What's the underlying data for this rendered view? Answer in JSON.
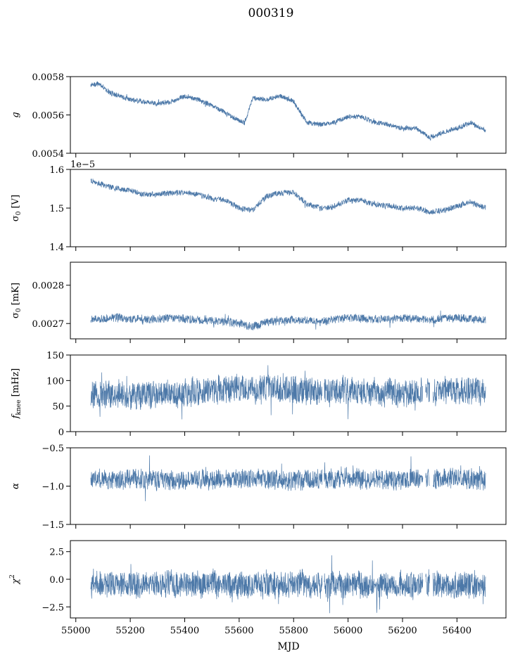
{
  "figure": {
    "suptitle": "000319",
    "xlabel": "MJD",
    "series_color": "#4c78a8"
  },
  "chart_data": [
    {
      "type": "line",
      "ylabel": "g",
      "xlim": [
        54980,
        56580
      ],
      "ylim": [
        0.0054,
        0.0058
      ],
      "yticks": [
        "0.0054",
        "0.0056",
        "0.0058"
      ],
      "ytick_values": [
        0.0054,
        0.0056,
        0.0058
      ],
      "xticks": [
        55000,
        55200,
        55400,
        55600,
        55800,
        56000,
        56200,
        56400
      ],
      "offset_text": "",
      "data_range": [
        55055,
        56505
      ],
      "trend": [
        [
          55055,
          0.005755
        ],
        [
          55080,
          0.005765
        ],
        [
          55120,
          0.00572
        ],
        [
          55160,
          0.0057
        ],
        [
          55200,
          0.00568
        ],
        [
          55250,
          0.00567
        ],
        [
          55300,
          0.00566
        ],
        [
          55350,
          0.00567
        ],
        [
          55400,
          0.0057
        ],
        [
          55450,
          0.00568
        ],
        [
          55500,
          0.00565
        ],
        [
          55550,
          0.00561
        ],
        [
          55600,
          0.00557
        ],
        [
          55620,
          0.00556
        ],
        [
          55650,
          0.00569
        ],
        [
          55700,
          0.00568
        ],
        [
          55750,
          0.0057
        ],
        [
          55800,
          0.00567
        ],
        [
          55850,
          0.00556
        ],
        [
          55900,
          0.00555
        ],
        [
          55950,
          0.00556
        ],
        [
          56000,
          0.00559
        ],
        [
          56050,
          0.00559
        ],
        [
          56100,
          0.00556
        ],
        [
          56150,
          0.00555
        ],
        [
          56200,
          0.00553
        ],
        [
          56250,
          0.00553
        ],
        [
          56300,
          0.00548
        ],
        [
          56350,
          0.00551
        ],
        [
          56400,
          0.00553
        ],
        [
          56450,
          0.00556
        ],
        [
          56505,
          0.00552
        ]
      ],
      "amplitude": 1.2e-05,
      "gaps": []
    },
    {
      "type": "line",
      "ylabel": "σ0 [V]",
      "xlim": [
        54980,
        56580
      ],
      "ylim": [
        1.4e-05,
        1.6e-05
      ],
      "yticks": [
        "1.4",
        "1.5",
        "1.6"
      ],
      "ytick_values": [
        1.4e-05,
        1.5e-05,
        1.6e-05
      ],
      "xticks": [
        55000,
        55200,
        55400,
        55600,
        55800,
        56000,
        56200,
        56400
      ],
      "offset_text": "1e−5",
      "data_range": [
        55055,
        56505
      ],
      "trend": [
        [
          55055,
          1.57e-05
        ],
        [
          55100,
          1.56e-05
        ],
        [
          55150,
          1.55e-05
        ],
        [
          55200,
          1.545e-05
        ],
        [
          55250,
          1.535e-05
        ],
        [
          55300,
          1.535e-05
        ],
        [
          55350,
          1.54e-05
        ],
        [
          55400,
          1.54e-05
        ],
        [
          55450,
          1.535e-05
        ],
        [
          55500,
          1.525e-05
        ],
        [
          55550,
          1.52e-05
        ],
        [
          55600,
          1.5e-05
        ],
        [
          55650,
          1.495e-05
        ],
        [
          55700,
          1.53e-05
        ],
        [
          55750,
          1.54e-05
        ],
        [
          55800,
          1.54e-05
        ],
        [
          55850,
          1.51e-05
        ],
        [
          55900,
          1.5e-05
        ],
        [
          55950,
          1.505e-05
        ],
        [
          56000,
          1.52e-05
        ],
        [
          56050,
          1.52e-05
        ],
        [
          56100,
          1.51e-05
        ],
        [
          56150,
          1.505e-05
        ],
        [
          56200,
          1.5e-05
        ],
        [
          56250,
          1.5e-05
        ],
        [
          56300,
          1.49e-05
        ],
        [
          56350,
          1.495e-05
        ],
        [
          56400,
          1.505e-05
        ],
        [
          56450,
          1.515e-05
        ],
        [
          56505,
          1.5e-05
        ]
      ],
      "amplitude": 7e-08,
      "gaps": []
    },
    {
      "type": "line",
      "ylabel": "σ0 [mK]",
      "xlim": [
        54980,
        56580
      ],
      "ylim": [
        0.00266,
        0.00286
      ],
      "yticks": [
        "0.0027",
        "0.0028"
      ],
      "ytick_values": [
        0.0027,
        0.0028
      ],
      "xticks": [
        55000,
        55200,
        55400,
        55600,
        55800,
        56000,
        56200,
        56400
      ],
      "offset_text": "",
      "data_range": [
        55055,
        56505
      ],
      "trend": [
        [
          55055,
          0.00271
        ],
        [
          55150,
          0.002715
        ],
        [
          55250,
          0.00271
        ],
        [
          55350,
          0.002715
        ],
        [
          55450,
          0.00271
        ],
        [
          55550,
          0.002705
        ],
        [
          55600,
          0.0027
        ],
        [
          55650,
          0.00269
        ],
        [
          55700,
          0.002705
        ],
        [
          55800,
          0.00271
        ],
        [
          55900,
          0.002705
        ],
        [
          56000,
          0.002715
        ],
        [
          56100,
          0.00271
        ],
        [
          56200,
          0.002715
        ],
        [
          56300,
          0.00271
        ],
        [
          56400,
          0.002715
        ],
        [
          56505,
          0.00271
        ]
      ],
      "amplitude": 1e-05,
      "gaps": []
    },
    {
      "type": "line",
      "ylabel": "fknee [mHz]",
      "xlim": [
        54980,
        56580
      ],
      "ylim": [
        0,
        150
      ],
      "yticks": [
        "0",
        "50",
        "100",
        "150"
      ],
      "ytick_values": [
        0,
        50,
        100,
        150
      ],
      "xticks": [
        55000,
        55200,
        55400,
        55600,
        55800,
        56000,
        56200,
        56400
      ],
      "offset_text": "",
      "data_range": [
        55055,
        56505
      ],
      "trend": [
        [
          55055,
          70
        ],
        [
          55200,
          72
        ],
        [
          55400,
          75
        ],
        [
          55500,
          80
        ],
        [
          55600,
          85
        ],
        [
          55800,
          82
        ],
        [
          55900,
          78
        ],
        [
          56000,
          80
        ],
        [
          56200,
          75
        ],
        [
          56400,
          80
        ],
        [
          56505,
          78
        ]
      ],
      "amplitude": 25,
      "gaps": [
        [
          55905,
          55912
        ],
        [
          56275,
          56285
        ],
        [
          56300,
          56312
        ]
      ]
    },
    {
      "type": "line",
      "ylabel": "α",
      "xlim": [
        54980,
        56580
      ],
      "ylim": [
        -1.5,
        -0.5
      ],
      "yticks": [
        "−1.5",
        "−1.0",
        "−0.5"
      ],
      "ytick_values": [
        -1.5,
        -1.0,
        -0.5
      ],
      "xticks": [
        55000,
        55200,
        55400,
        55600,
        55800,
        56000,
        56200,
        56400
      ],
      "offset_text": "",
      "data_range": [
        55055,
        56505
      ],
      "trend": [
        [
          55055,
          -0.92
        ],
        [
          55200,
          -0.9
        ],
        [
          55400,
          -0.93
        ],
        [
          55600,
          -0.9
        ],
        [
          55800,
          -0.92
        ],
        [
          56000,
          -0.9
        ],
        [
          56200,
          -0.92
        ],
        [
          56400,
          -0.9
        ],
        [
          56505,
          -0.92
        ]
      ],
      "amplitude": 0.12,
      "gaps": [
        [
          55905,
          55912
        ],
        [
          56275,
          56285
        ],
        [
          56300,
          56312
        ]
      ]
    },
    {
      "type": "line",
      "ylabel": "χ2",
      "xlim": [
        54980,
        56580
      ],
      "ylim": [
        -3.5,
        3.5
      ],
      "yticks": [
        "−2.5",
        "0.0",
        "2.5"
      ],
      "ytick_values": [
        -2.5,
        0.0,
        2.5
      ],
      "xticks": [
        55000,
        55200,
        55400,
        55600,
        55800,
        56000,
        56200,
        56400
      ],
      "offset_text": "",
      "data_range": [
        55055,
        56505
      ],
      "trend": [
        [
          55055,
          -0.5
        ],
        [
          55300,
          -0.4
        ],
        [
          55600,
          -0.5
        ],
        [
          55900,
          -0.5
        ],
        [
          56200,
          -0.5
        ],
        [
          56505,
          -0.5
        ]
      ],
      "amplitude": 1.1,
      "gaps": [
        [
          55905,
          55912
        ],
        [
          56275,
          56285
        ],
        [
          56300,
          56312
        ]
      ]
    }
  ]
}
